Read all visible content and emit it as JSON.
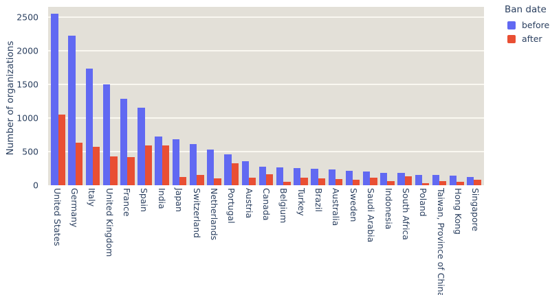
{
  "figure": {
    "y_axis_title": "Number of organizations",
    "y_ticks": [
      0,
      500,
      1000,
      1500,
      2000,
      2500
    ],
    "legend": {
      "title": "Ban date",
      "items": [
        {
          "label": "before",
          "color": "#6169f2"
        },
        {
          "label": "after",
          "color": "#e94f33"
        }
      ]
    },
    "colors": {
      "before": "#6169f2",
      "after": "#e94f33",
      "plot_background": "#e3e0d8",
      "gridline": "#faf8f1",
      "text": "#2a3f5f"
    }
  },
  "chart_data": {
    "type": "bar",
    "title": "",
    "xlabel": "",
    "ylabel": "Number of organizations",
    "ylim": [
      0,
      2650
    ],
    "grid": true,
    "legend_title": "Ban date",
    "legend_position": "outside-top-right",
    "categories": [
      "United States",
      "Germany",
      "Italy",
      "United Kingdom",
      "France",
      "Spain",
      "India",
      "Japan",
      "Switzerland",
      "Netherlands",
      "Portugal",
      "Austria",
      "Canada",
      "Belgium",
      "Turkey",
      "Brazil",
      "Australia",
      "Sweden",
      "Saudi Arabia",
      "Indonesia",
      "South Africa",
      "Poland",
      "Taiwan, Province of China",
      "Hong Kong",
      "Singapore"
    ],
    "series": [
      {
        "name": "before",
        "color": "#6169f2",
        "values": [
          2550,
          2220,
          1730,
          1500,
          1290,
          1150,
          720,
          680,
          610,
          530,
          460,
          355,
          280,
          265,
          260,
          250,
          235,
          210,
          205,
          185,
          180,
          155,
          150,
          145,
          125
        ]
      },
      {
        "name": "after",
        "color": "#e94f33",
        "values": [
          1050,
          630,
          570,
          430,
          420,
          590,
          590,
          125,
          150,
          100,
          330,
          110,
          160,
          55,
          115,
          105,
          90,
          85,
          110,
          65,
          130,
          30,
          62,
          48,
          80
        ]
      }
    ]
  }
}
